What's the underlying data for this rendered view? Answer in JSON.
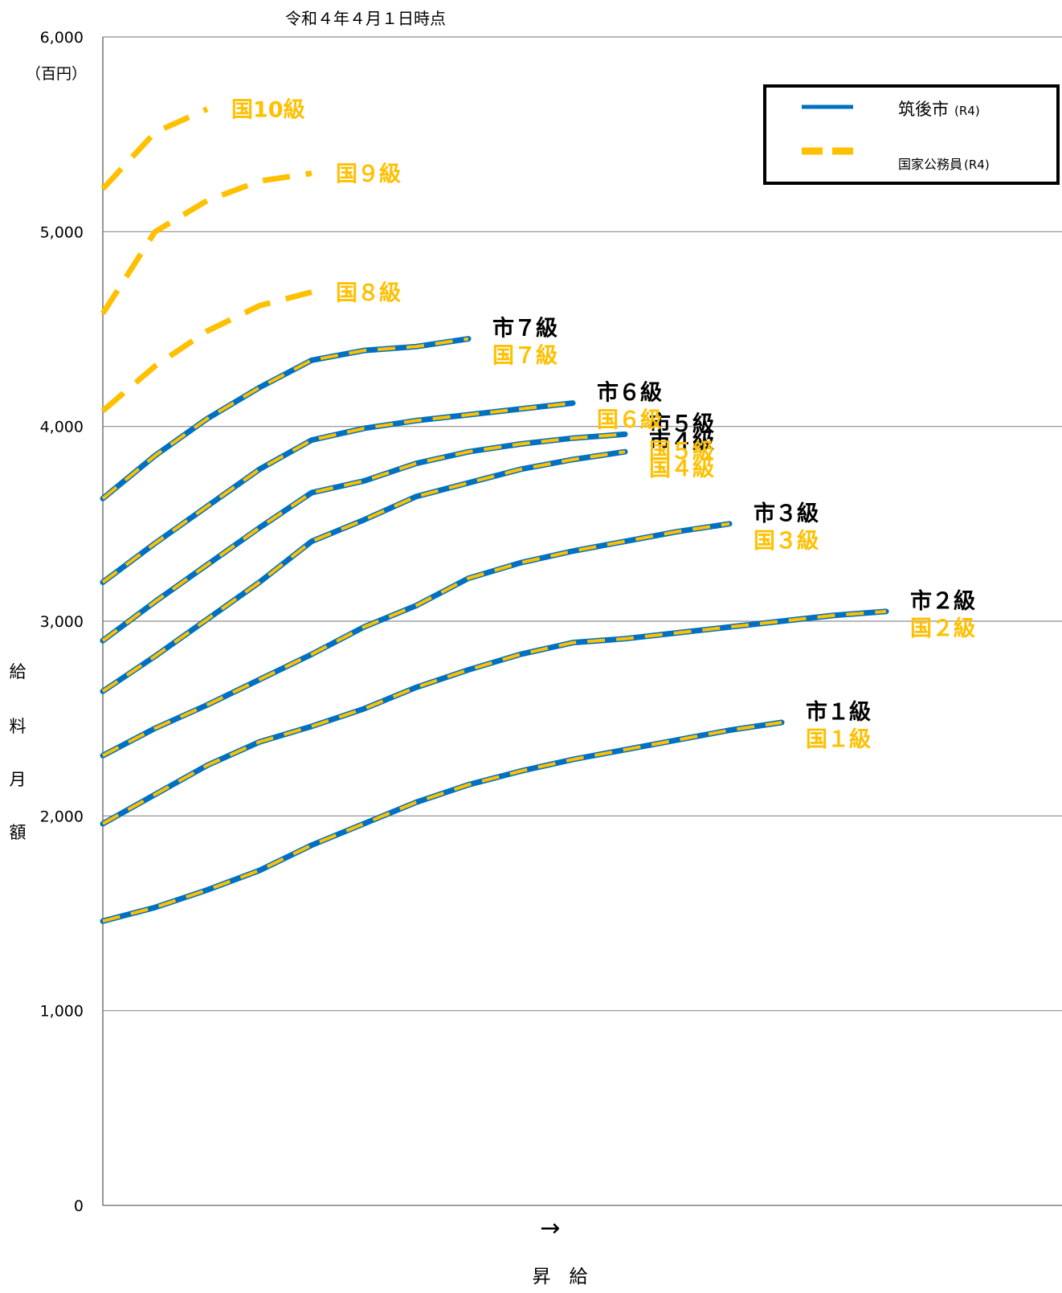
{
  "chart_data": {
    "type": "line",
    "title": "令和４年４月１日時点",
    "unit_label": "（百円）",
    "ylabel_chars": [
      "給",
      "料",
      "月",
      "額"
    ],
    "xlabel": "昇　給",
    "x_arrow": "→",
    "ylim": [
      0,
      6000
    ],
    "yticks": [
      "0",
      "1,000",
      "2,000",
      "3,000",
      "4,000",
      "5,000",
      "6,000"
    ],
    "grid": true,
    "colors": {
      "city": "#0070C0",
      "national": "#FFC000",
      "axis": "#7f7f7f",
      "city_label": "#000000"
    },
    "legend": {
      "position": "top-right",
      "items": [
        {
          "label": "筑後市",
          "suffix": "(R4)",
          "style": "solid",
          "color": "#0070C0"
        },
        {
          "label": "国家公務員",
          "suffix": "(R4)",
          "style": "dashed",
          "color": "#FFC000"
        }
      ]
    },
    "series": [
      {
        "grade": 1,
        "city_label": "市１級",
        "nat_label": "国１級",
        "has_city": true,
        "values": [
          1460,
          1530,
          1620,
          1720,
          1850,
          1960,
          2070,
          2160,
          2230,
          2290,
          2340,
          2390,
          2440,
          2480
        ]
      },
      {
        "grade": 2,
        "city_label": "市２級",
        "nat_label": "国２級",
        "has_city": true,
        "values": [
          1960,
          2110,
          2260,
          2380,
          2460,
          2550,
          2660,
          2750,
          2830,
          2890,
          2910,
          2940,
          2970,
          3000,
          3030,
          3050
        ]
      },
      {
        "grade": 3,
        "city_label": "市３級",
        "nat_label": "国３級",
        "has_city": true,
        "values": [
          2310,
          2450,
          2570,
          2700,
          2830,
          2970,
          3080,
          3220,
          3300,
          3360,
          3410,
          3460,
          3500
        ]
      },
      {
        "grade": 4,
        "city_label": "市４級",
        "nat_label": "国４級",
        "has_city": true,
        "values": [
          2640,
          2820,
          3010,
          3200,
          3410,
          3520,
          3640,
          3710,
          3780,
          3830,
          3870
        ]
      },
      {
        "grade": 5,
        "city_label": "市５級",
        "nat_label": "国５級",
        "has_city": true,
        "values": [
          2900,
          3100,
          3290,
          3480,
          3660,
          3720,
          3810,
          3870,
          3910,
          3940,
          3960
        ]
      },
      {
        "grade": 6,
        "city_label": "市６級",
        "nat_label": "国６級",
        "has_city": true,
        "values": [
          3200,
          3400,
          3590,
          3780,
          3930,
          3990,
          4030,
          4060,
          4090,
          4120
        ]
      },
      {
        "grade": 7,
        "city_label": "市７級",
        "nat_label": "国７級",
        "has_city": true,
        "values": [
          3630,
          3850,
          4040,
          4200,
          4340,
          4390,
          4410,
          4450
        ]
      },
      {
        "grade": 8,
        "city_label": "",
        "nat_label": "国８級",
        "has_city": false,
        "values": [
          4080,
          4310,
          4490,
          4620,
          4690
        ]
      },
      {
        "grade": 9,
        "city_label": "",
        "nat_label": "国９級",
        "has_city": false,
        "values": [
          4580,
          5000,
          5160,
          5260,
          5300
        ]
      },
      {
        "grade": 10,
        "city_label": "",
        "nat_label": "国10級",
        "has_city": false,
        "values": [
          5220,
          5510,
          5630
        ]
      }
    ]
  }
}
